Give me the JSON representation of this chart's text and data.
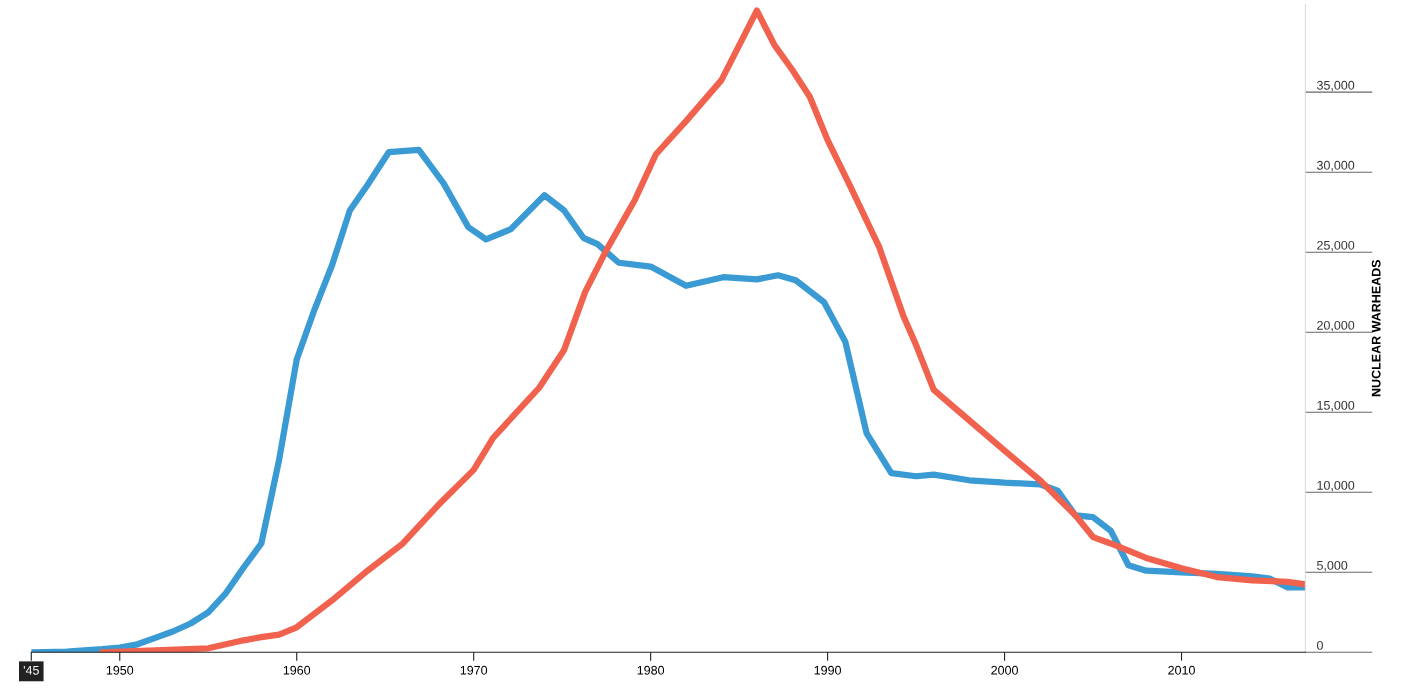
{
  "chart_data": {
    "type": "line",
    "ylabel": "NUCLEAR WARHEADS",
    "series": [
      {
        "color": "#3a9ad3",
        "x": [
          1945,
          1947,
          1949,
          1950,
          1951,
          1952,
          1953,
          1954,
          1955,
          1956,
          1957,
          1958,
          1959,
          1960,
          1961,
          1962,
          1963,
          1964,
          1965.2,
          1966.9,
          1968.3,
          1969.7,
          1970.7,
          1972.1,
          1974.0,
          1975.1,
          1976.2,
          1977.0,
          1978.2,
          1980.0,
          1982.0,
          1984.1,
          1986.0,
          1987.2,
          1988.2,
          1989.8,
          1991.0,
          1992.2,
          1993.6,
          1995,
          1996,
          1998,
          2000,
          2002,
          2003,
          2004,
          2005,
          2006,
          2007,
          2008,
          2010,
          2012,
          2014,
          2015,
          2016,
          2017
        ],
        "values": [
          0,
          50,
          200,
          300,
          500,
          900,
          1300,
          1800,
          2500,
          3700,
          5300,
          6800,
          12000,
          18300,
          21400,
          24200,
          27600,
          29200,
          31250,
          31400,
          29300,
          26560,
          25800,
          26440,
          28560,
          27620,
          25900,
          25500,
          24340,
          24100,
          22900,
          23440,
          23300,
          23560,
          23250,
          21870,
          19400,
          13700,
          11190,
          11000,
          11100,
          10750,
          10600,
          10500,
          10100,
          8560,
          8440,
          7600,
          5440,
          5100,
          5000,
          4900,
          4750,
          4600,
          4060,
          4060
        ]
      },
      {
        "color": "#f0624d",
        "x": [
          1949,
          1955,
          1957,
          1958,
          1959,
          1960,
          1962,
          1964,
          1966,
          1968,
          1970,
          1971.1,
          1973.7,
          1975.1,
          1976.3,
          1977.5,
          1979.1,
          1980.3,
          1982.0,
          1984,
          1986,
          1987,
          1988,
          1989,
          1990,
          1991.2,
          1992.9,
          1994.3,
          1995,
          1996,
          1997,
          1998,
          2000,
          2002,
          2004,
          2005,
          2006,
          2008,
          2010,
          2012,
          2014,
          2016,
          2017
        ],
        "values": [
          0,
          250,
          750,
          950,
          1100,
          1560,
          3250,
          5100,
          6800,
          9200,
          11400,
          13400,
          16530,
          18870,
          22520,
          25130,
          28250,
          31120,
          33190,
          35750,
          40100,
          37940,
          36400,
          34700,
          32000,
          29300,
          25370,
          20960,
          19200,
          16400,
          15440,
          14500,
          12600,
          10750,
          8560,
          7200,
          6800,
          5900,
          5250,
          4700,
          4500,
          4400,
          4250
        ]
      }
    ],
    "xlim": [
      1945,
      2017
    ],
    "xticks": [
      {
        "value": 1945,
        "label": "'45"
      },
      1950,
      1960,
      1970,
      1980,
      1990,
      2000,
      2010
    ],
    "ylim": [
      0,
      40500
    ],
    "yticks": [
      {
        "value": 0,
        "label": "0"
      },
      {
        "value": 5000,
        "label": "5,000"
      },
      {
        "value": 10000,
        "label": "10,000"
      },
      {
        "value": 15000,
        "label": "15,000"
      },
      {
        "value": 20000,
        "label": "20,000"
      },
      {
        "value": 25000,
        "label": "25,000"
      },
      {
        "value": 30000,
        "label": "30,000"
      },
      {
        "value": 35000,
        "label": "35,000"
      }
    ],
    "line_style": "solid",
    "marker": "none"
  }
}
